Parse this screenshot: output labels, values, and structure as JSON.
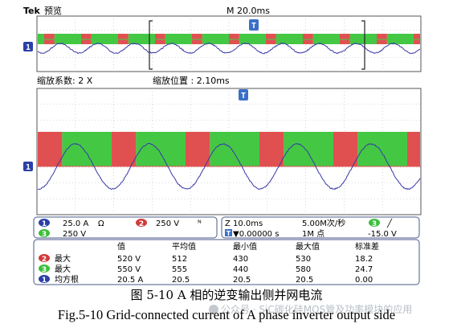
{
  "header": {
    "brand": "Tek",
    "mode": "预览",
    "timebase_label": "M 20.0ms"
  },
  "zoom_info": {
    "factor_label": "缩放系数: 2 X",
    "position_label": "缩放位置 : 2.10ms"
  },
  "markers": {
    "trigger": "T",
    "channel1": "1"
  },
  "channels": [
    {
      "num": "1",
      "value": "25.0 A",
      "coupling": "Ω",
      "color": "#2a3fa8"
    },
    {
      "num": "2",
      "value": "250 V",
      "coupling": "ᴺ",
      "color": "#d23a3a"
    },
    {
      "num": "3",
      "value": "250 V",
      "color": "#3dbf3d"
    }
  ],
  "timing": {
    "zoom_time": "Z 10.0ms",
    "sample_rate": "5.00M次/秒",
    "offset": "▼0.00000 s",
    "record_length": "1M 点",
    "trigger_channel": "3",
    "trigger_slope": "╱",
    "trigger_level": "-15.0 V"
  },
  "measurements": {
    "headers": [
      "值",
      "平均值",
      "最小值",
      "最大值",
      "标准差"
    ],
    "rows": [
      {
        "ch": "2",
        "name": "最大",
        "values": [
          "520 V",
          "512",
          "430",
          "530",
          "18.2"
        ]
      },
      {
        "ch": "3",
        "name": "最大",
        "values": [
          "550 V",
          "555",
          "440",
          "580",
          "24.7"
        ]
      },
      {
        "ch": "1",
        "name": "均方根",
        "values": [
          "20.5 A",
          "20.5",
          "20.5",
          "20.5",
          "0.00"
        ]
      }
    ]
  },
  "captions": {
    "cn": "图 5-10 A 相的逆变输出侧并网电流",
    "en": "Fig.5-10 Grid-connected current of A phase inverter output side"
  },
  "watermark": "公众号 · SiC碳化硅MOS管及功率模块的应用",
  "colors": {
    "red": "#e05050",
    "green": "#44c844",
    "blue": "#3838a8",
    "panel_border": "#4a5a8a"
  }
}
